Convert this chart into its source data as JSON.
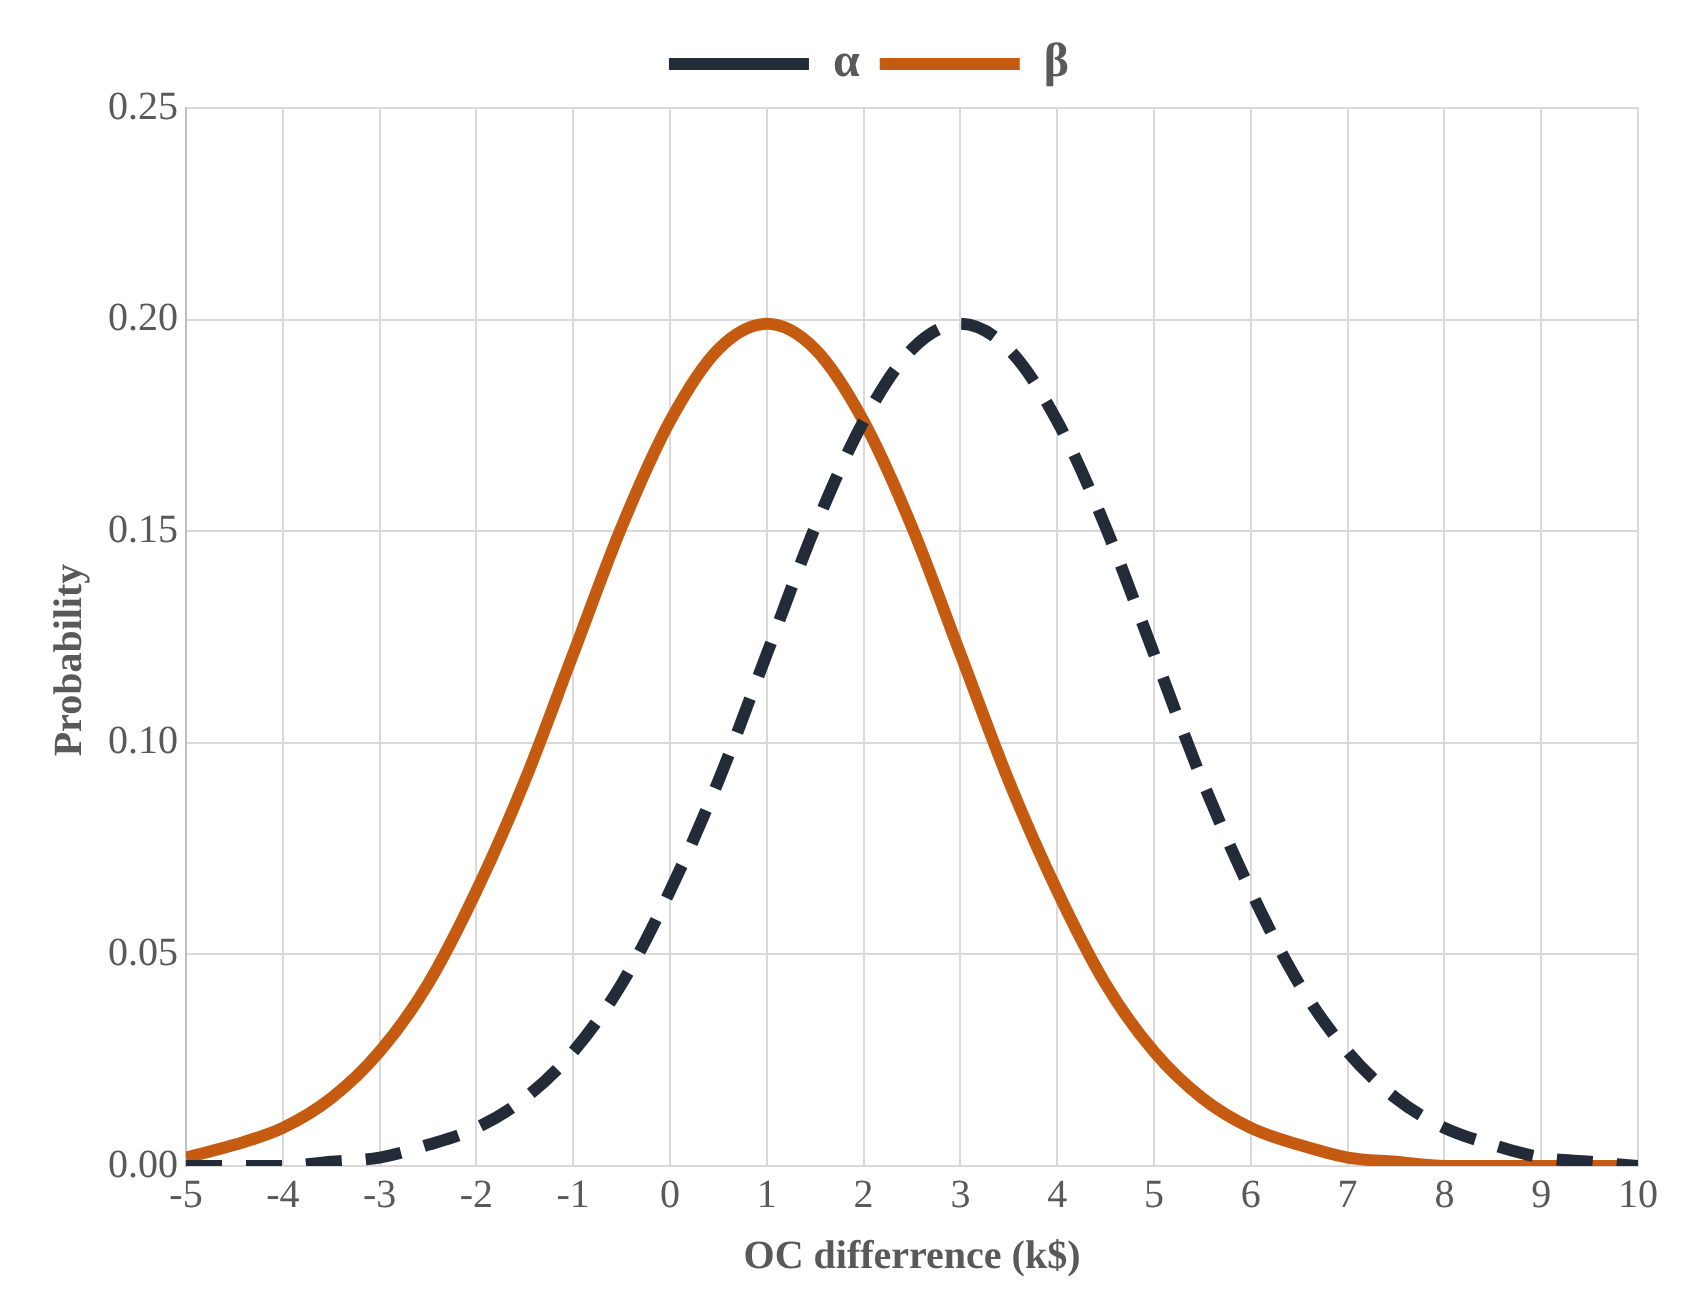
{
  "chart_data": {
    "type": "line",
    "xlabel": "OC differrence (k$)",
    "ylabel": "Probability",
    "x": [
      -5,
      -4.5,
      -4,
      -3.5,
      -3,
      -2.5,
      -2,
      -1.5,
      -1,
      -0.5,
      0,
      0.5,
      1,
      1.5,
      2,
      2.5,
      3,
      3.5,
      4,
      4.5,
      5,
      5.5,
      6,
      6.5,
      7,
      7.5,
      8,
      8.5,
      9,
      9.5,
      10
    ],
    "series": [
      {
        "name": "α",
        "color": "#232b38",
        "line_style": "dashed",
        "values": [
          0,
          0,
          0,
          0.001,
          0.002,
          0.005,
          0.009,
          0.016,
          0.027,
          0.043,
          0.065,
          0.091,
          0.121,
          0.151,
          0.176,
          0.193,
          0.199,
          0.193,
          0.176,
          0.151,
          0.121,
          0.091,
          0.065,
          0.043,
          0.027,
          0.016,
          0.009,
          0.005,
          0.002,
          0.001,
          0
        ]
      },
      {
        "name": "β",
        "color": "#c55a11",
        "line_style": "solid",
        "values": [
          0.002,
          0.005,
          0.009,
          0.016,
          0.027,
          0.043,
          0.065,
          0.091,
          0.121,
          0.151,
          0.176,
          0.193,
          0.199,
          0.193,
          0.176,
          0.151,
          0.121,
          0.091,
          0.065,
          0.043,
          0.027,
          0.016,
          0.009,
          0.005,
          0.002,
          0.001,
          0,
          0,
          0,
          0,
          0
        ]
      }
    ],
    "xlim": [
      -5,
      10
    ],
    "xticks": [
      -5,
      -4,
      -3,
      -2,
      -1,
      0,
      1,
      2,
      3,
      4,
      5,
      6,
      7,
      8,
      9,
      10
    ],
    "ylim": [
      0,
      0.25
    ],
    "yticks": [
      {
        "value": 0,
        "label": "0.00"
      },
      {
        "value": 0.05,
        "label": "0.05"
      },
      {
        "value": 0.1,
        "label": "0.10"
      },
      {
        "value": 0.15,
        "label": "0.15"
      },
      {
        "value": 0.2,
        "label": "0.20"
      },
      {
        "value": 0.25,
        "label": "0.25"
      }
    ],
    "grid": true,
    "legend": "top",
    "marker": "none"
  }
}
